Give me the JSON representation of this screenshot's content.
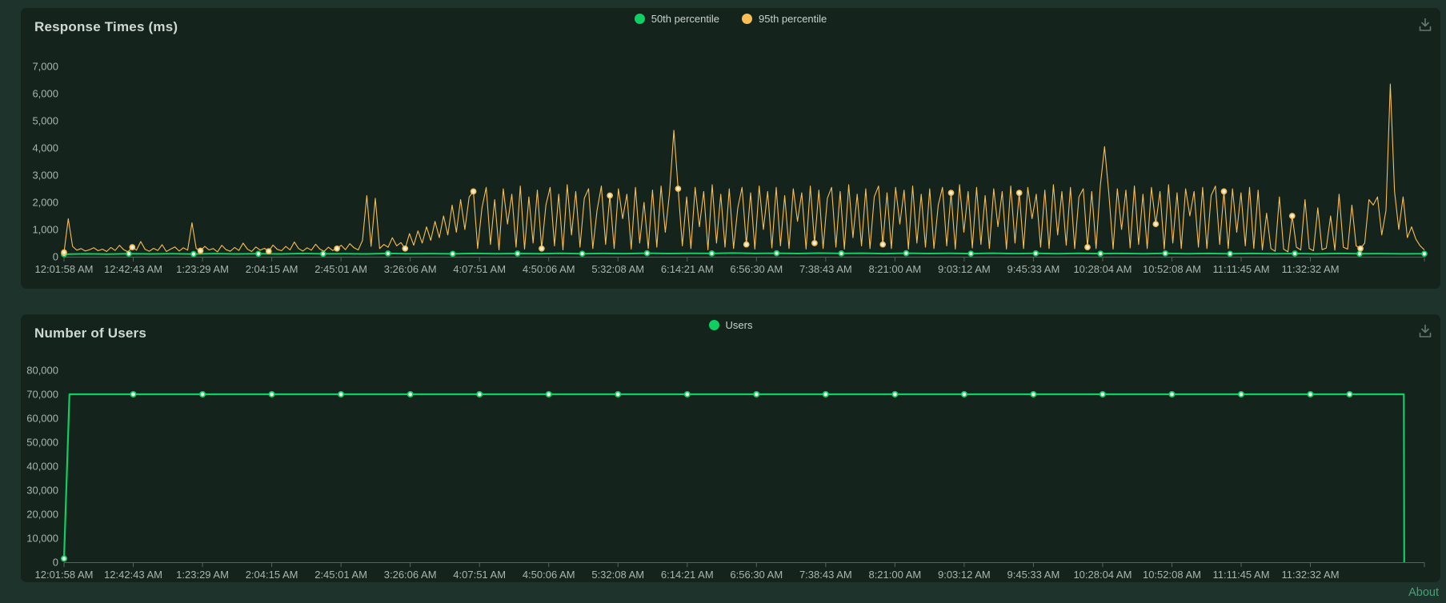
{
  "page": {
    "about_label": "About"
  },
  "icons": {
    "download": "download-icon"
  },
  "chart_data": [
    {
      "type": "line",
      "title": "Response Times (ms)",
      "legend_position": "top-center",
      "grid": false,
      "ylim": [
        0,
        7000
      ],
      "y_ticks": [
        0,
        1000,
        2000,
        3000,
        4000,
        5000,
        6000,
        7000
      ],
      "y_tick_labels": [
        "0",
        "1,000",
        "2,000",
        "3,000",
        "4,000",
        "5,000",
        "6,000",
        "7,000"
      ],
      "x_tick_labels": [
        "12:01:58 AM",
        "12:42:43 AM",
        "1:23:29 AM",
        "2:04:15 AM",
        "2:45:01 AM",
        "3:26:06 AM",
        "4:07:51 AM",
        "4:50:06 AM",
        "5:32:08 AM",
        "6:14:21 AM",
        "6:56:30 AM",
        "7:38:43 AM",
        "8:21:00 AM",
        "9:03:12 AM",
        "9:45:33 AM",
        "10:28:04 AM",
        "10:52:08 AM",
        "11:11:45 AM",
        "11:32:32 AM"
      ],
      "series": [
        {
          "name": "50th percentile",
          "color": "#0fce62",
          "marker_step": 3,
          "values": [
            90,
            105,
            98,
            112,
            102,
            108,
            100,
            115,
            104,
            110,
            102,
            118,
            106,
            112,
            104,
            120,
            108,
            114,
            106,
            122,
            110,
            118,
            108,
            125,
            112,
            120,
            115,
            130,
            118,
            126,
            120,
            135,
            122,
            130,
            118,
            132,
            120,
            128,
            116,
            130,
            118,
            125,
            115,
            128,
            116,
            124,
            112,
            126,
            114,
            122,
            110,
            124,
            112,
            120,
            110,
            122,
            108,
            118,
            106,
            120,
            108,
            115,
            105,
            110
          ]
        },
        {
          "name": "95th percentile",
          "color": "#f9be54",
          "marker_step": 16,
          "values": [
            160,
            1400,
            380,
            240,
            300,
            210,
            260,
            330,
            220,
            280,
            190,
            340,
            230,
            420,
            260,
            180,
            350,
            240,
            560,
            270,
            200,
            310,
            230,
            440,
            190,
            280,
            360,
            210,
            330,
            240,
            1250,
            300,
            220,
            380,
            250,
            300,
            180,
            420,
            260,
            200,
            340,
            230,
            500,
            280,
            190,
            360,
            240,
            310,
            200,
            430,
            270,
            220,
            380,
            250,
            540,
            300,
            210,
            330,
            240,
            460,
            280,
            200,
            350,
            230,
            300,
            420,
            260,
            480,
            330,
            250,
            600,
            2250,
            380,
            2150,
            300,
            450,
            350,
            700,
            400,
            520,
            300,
            850,
            420,
            950,
            500,
            1100,
            600,
            1300,
            700,
            1500,
            800,
            1900,
            900,
            2100,
            1000,
            2200,
            2400,
            300,
            1800,
            2550,
            450,
            2100,
            250,
            2500,
            1200,
            2300,
            350,
            2600,
            280,
            2200,
            500,
            2450,
            300,
            1900,
            2550,
            400,
            2300,
            250,
            2650,
            800,
            2400,
            350,
            2150,
            2500,
            300,
            1700,
            2600,
            450,
            2250,
            300,
            2500,
            1400,
            2300,
            280,
            2550,
            500,
            2000,
            300,
            2450,
            350,
            2600,
            900,
            2350,
            4650,
            2500,
            400,
            2200,
            300,
            2550,
            1100,
            2400,
            250,
            2650,
            500,
            2300,
            350,
            2500,
            300,
            1800,
            2550,
            450,
            2350,
            280,
            2600,
            1000,
            2400,
            320,
            2550,
            400,
            2250,
            300,
            2500,
            1300,
            2350,
            280,
            2600,
            500,
            2450,
            300,
            2150,
            2550,
            350,
            2400,
            280,
            2650,
            700,
            2300,
            400,
            2500,
            300,
            2200,
            2600,
            450,
            2350,
            300,
            2550,
            1200,
            2450,
            280,
            2600,
            500,
            2300,
            350,
            2500,
            300,
            1900,
            2550,
            400,
            2350,
            280,
            2650,
            900,
            2400,
            320,
            2550,
            450,
            2250,
            300,
            2500,
            1100,
            2400,
            280,
            2600,
            500,
            2350,
            300,
            2550,
            1400,
            2300,
            350,
            2450,
            300,
            2650,
            800,
            2400,
            420,
            2550,
            300,
            2200,
            2500,
            350,
            2400,
            300,
            2600,
            4050,
            2350,
            280,
            2500,
            1000,
            2450,
            320,
            2600,
            450,
            2300,
            300,
            2550,
            1200,
            2400,
            280,
            2650,
            500,
            2350,
            300,
            2500,
            1500,
            2400,
            350,
            2550,
            300,
            2250,
            2600,
            450,
            2400,
            300,
            2500,
            900,
            2350,
            400,
            2550,
            300,
            2450,
            250,
            1600,
            300,
            200,
            2200,
            280,
            180,
            1500,
            350,
            250,
            2100,
            300,
            220,
            1800,
            260,
            320,
            1500,
            240,
            2300,
            350,
            280,
            1900,
            400,
            300,
            500,
            2100,
            1900,
            2200,
            800,
            1700,
            6350,
            2400,
            1000,
            2200,
            700,
            1100,
            650,
            400,
            250
          ]
        }
      ]
    },
    {
      "type": "line",
      "title": "Number of Users",
      "legend_position": "top-center",
      "grid": false,
      "ylim": [
        0,
        80000
      ],
      "y_ticks": [
        0,
        10000,
        20000,
        30000,
        40000,
        50000,
        60000,
        70000,
        80000
      ],
      "y_tick_labels": [
        "0",
        "10,000",
        "20,000",
        "30,000",
        "40,000",
        "50,000",
        "60,000",
        "70,000",
        "80,000"
      ],
      "x_tick_labels": [
        "12:01:58 AM",
        "12:42:43 AM",
        "1:23:29 AM",
        "2:04:15 AM",
        "2:45:01 AM",
        "3:26:06 AM",
        "4:07:51 AM",
        "4:50:06 AM",
        "5:32:08 AM",
        "6:14:21 AM",
        "6:56:30 AM",
        "7:38:43 AM",
        "8:21:00 AM",
        "9:03:12 AM",
        "9:45:33 AM",
        "10:28:04 AM",
        "10:52:08 AM",
        "11:11:45 AM",
        "11:32:32 AM"
      ],
      "series": [
        {
          "name": "Users",
          "color": "#0fce62",
          "points": [
            [
              0,
              1500
            ],
            [
              0.004,
              70000
            ],
            [
              0.9849,
              70000
            ],
            [
              0.9852,
              0
            ]
          ],
          "marker_fracs": [
            0,
            0.0509,
            0.1018,
            0.1527,
            0.2036,
            0.2545,
            0.3054,
            0.3563,
            0.4072,
            0.4581,
            0.509,
            0.5599,
            0.6108,
            0.6617,
            0.7126,
            0.7635,
            0.8144,
            0.8653,
            0.9162,
            0.945
          ]
        }
      ]
    }
  ]
}
